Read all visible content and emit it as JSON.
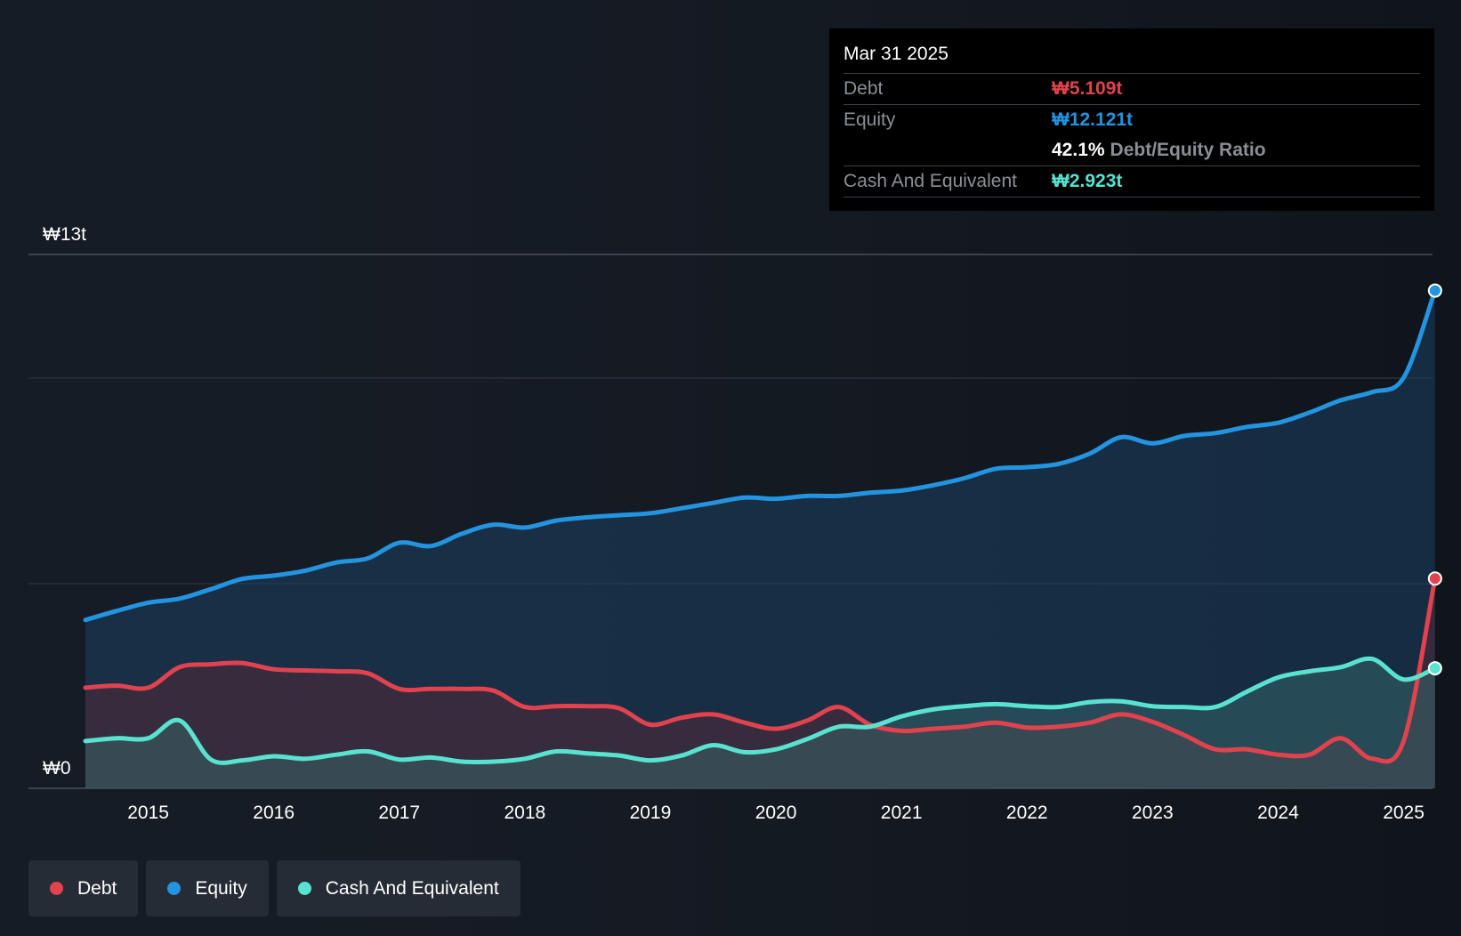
{
  "chart_data": {
    "type": "area",
    "title": "",
    "y_axis": {
      "top_label": "₩13t",
      "bottom_label": "₩0",
      "min": 0,
      "max": 13
    },
    "x_ticks": [
      "2015",
      "2016",
      "2017",
      "2018",
      "2019",
      "2020",
      "2021",
      "2022",
      "2023",
      "2024",
      "2025"
    ],
    "x_range": [
      2014.5,
      2025.25
    ],
    "series": [
      {
        "name": "Equity",
        "color": "#2394df",
        "unit": "trillion KRW",
        "points": [
          [
            2014.5,
            4.1
          ],
          [
            2014.75,
            4.32
          ],
          [
            2015.0,
            4.52
          ],
          [
            2015.25,
            4.62
          ],
          [
            2015.5,
            4.85
          ],
          [
            2015.75,
            5.1
          ],
          [
            2016.0,
            5.18
          ],
          [
            2016.25,
            5.3
          ],
          [
            2016.5,
            5.5
          ],
          [
            2016.75,
            5.6
          ],
          [
            2017.0,
            5.98
          ],
          [
            2017.25,
            5.9
          ],
          [
            2017.5,
            6.2
          ],
          [
            2017.75,
            6.42
          ],
          [
            2018.0,
            6.35
          ],
          [
            2018.25,
            6.52
          ],
          [
            2018.5,
            6.6
          ],
          [
            2018.75,
            6.65
          ],
          [
            2019.0,
            6.7
          ],
          [
            2019.25,
            6.82
          ],
          [
            2019.5,
            6.95
          ],
          [
            2019.75,
            7.08
          ],
          [
            2020.0,
            7.05
          ],
          [
            2020.25,
            7.12
          ],
          [
            2020.5,
            7.12
          ],
          [
            2020.75,
            7.2
          ],
          [
            2021.0,
            7.25
          ],
          [
            2021.25,
            7.38
          ],
          [
            2021.5,
            7.55
          ],
          [
            2021.75,
            7.78
          ],
          [
            2022.0,
            7.82
          ],
          [
            2022.25,
            7.9
          ],
          [
            2022.5,
            8.15
          ],
          [
            2022.75,
            8.55
          ],
          [
            2023.0,
            8.4
          ],
          [
            2023.25,
            8.58
          ],
          [
            2023.5,
            8.65
          ],
          [
            2023.75,
            8.8
          ],
          [
            2024.0,
            8.9
          ],
          [
            2024.25,
            9.15
          ],
          [
            2024.5,
            9.45
          ],
          [
            2024.75,
            9.65
          ],
          [
            2025.0,
            10.0
          ],
          [
            2025.25,
            12.121
          ]
        ]
      },
      {
        "name": "Debt",
        "color": "#e2424e",
        "unit": "trillion KRW",
        "points": [
          [
            2014.5,
            2.45
          ],
          [
            2014.75,
            2.5
          ],
          [
            2015.0,
            2.45
          ],
          [
            2015.25,
            2.95
          ],
          [
            2015.5,
            3.02
          ],
          [
            2015.75,
            3.05
          ],
          [
            2016.0,
            2.9
          ],
          [
            2016.25,
            2.87
          ],
          [
            2016.5,
            2.85
          ],
          [
            2016.75,
            2.8
          ],
          [
            2017.0,
            2.42
          ],
          [
            2017.25,
            2.42
          ],
          [
            2017.5,
            2.42
          ],
          [
            2017.75,
            2.38
          ],
          [
            2018.0,
            1.98
          ],
          [
            2018.25,
            2.0
          ],
          [
            2018.5,
            2.0
          ],
          [
            2018.75,
            1.95
          ],
          [
            2019.0,
            1.55
          ],
          [
            2019.25,
            1.72
          ],
          [
            2019.5,
            1.8
          ],
          [
            2019.75,
            1.6
          ],
          [
            2020.0,
            1.45
          ],
          [
            2020.25,
            1.65
          ],
          [
            2020.5,
            1.98
          ],
          [
            2020.75,
            1.55
          ],
          [
            2021.0,
            1.4
          ],
          [
            2021.25,
            1.45
          ],
          [
            2021.5,
            1.5
          ],
          [
            2021.75,
            1.6
          ],
          [
            2022.0,
            1.48
          ],
          [
            2022.25,
            1.5
          ],
          [
            2022.5,
            1.6
          ],
          [
            2022.75,
            1.8
          ],
          [
            2023.0,
            1.62
          ],
          [
            2023.25,
            1.3
          ],
          [
            2023.5,
            0.95
          ],
          [
            2023.75,
            0.95
          ],
          [
            2024.0,
            0.82
          ],
          [
            2024.25,
            0.82
          ],
          [
            2024.5,
            1.22
          ],
          [
            2024.75,
            0.72
          ],
          [
            2025.0,
            1.15
          ],
          [
            2025.25,
            5.109
          ]
        ]
      },
      {
        "name": "Cash And Equivalent",
        "color": "#58e2cf",
        "unit": "trillion KRW",
        "points": [
          [
            2014.5,
            1.15
          ],
          [
            2014.75,
            1.22
          ],
          [
            2015.0,
            1.22
          ],
          [
            2015.25,
            1.65
          ],
          [
            2015.5,
            0.7
          ],
          [
            2015.75,
            0.68
          ],
          [
            2016.0,
            0.78
          ],
          [
            2016.25,
            0.72
          ],
          [
            2016.5,
            0.82
          ],
          [
            2016.75,
            0.9
          ],
          [
            2017.0,
            0.7
          ],
          [
            2017.25,
            0.75
          ],
          [
            2017.5,
            0.65
          ],
          [
            2017.75,
            0.65
          ],
          [
            2018.0,
            0.72
          ],
          [
            2018.25,
            0.9
          ],
          [
            2018.5,
            0.85
          ],
          [
            2018.75,
            0.8
          ],
          [
            2019.0,
            0.68
          ],
          [
            2019.25,
            0.8
          ],
          [
            2019.5,
            1.05
          ],
          [
            2019.75,
            0.88
          ],
          [
            2020.0,
            0.95
          ],
          [
            2020.25,
            1.2
          ],
          [
            2020.5,
            1.5
          ],
          [
            2020.75,
            1.5
          ],
          [
            2021.0,
            1.75
          ],
          [
            2021.25,
            1.92
          ],
          [
            2021.5,
            2.0
          ],
          [
            2021.75,
            2.05
          ],
          [
            2022.0,
            2.0
          ],
          [
            2022.25,
            1.98
          ],
          [
            2022.5,
            2.1
          ],
          [
            2022.75,
            2.12
          ],
          [
            2023.0,
            2.0
          ],
          [
            2023.25,
            1.98
          ],
          [
            2023.5,
            1.98
          ],
          [
            2023.75,
            2.35
          ],
          [
            2024.0,
            2.7
          ],
          [
            2024.25,
            2.85
          ],
          [
            2024.5,
            2.95
          ],
          [
            2024.75,
            3.15
          ],
          [
            2025.0,
            2.65
          ],
          [
            2025.25,
            2.923
          ]
        ]
      }
    ],
    "grid": true
  },
  "tooltip": {
    "date": "Mar 31 2025",
    "debt_label": "Debt",
    "debt_value": "₩5.109t",
    "equity_label": "Equity",
    "equity_value": "₩12.121t",
    "ratio_value": "42.1%",
    "ratio_label": "Debt/Equity Ratio",
    "cash_label": "Cash And Equivalent",
    "cash_value": "₩2.923t"
  },
  "legend": [
    {
      "label": "Debt",
      "color": "#e2424e"
    },
    {
      "label": "Equity",
      "color": "#2394df"
    },
    {
      "label": "Cash And Equivalent",
      "color": "#58e2cf"
    }
  ]
}
